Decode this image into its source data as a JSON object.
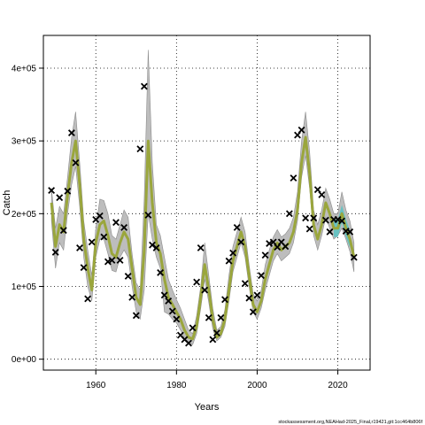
{
  "chart_data": {
    "type": "line",
    "xlabel": "Years",
    "ylabel": "Catch",
    "xlim": [
      1947,
      2028
    ],
    "ylim": [
      -15000,
      445000
    ],
    "x_ticks": [
      1960,
      1980,
      2000,
      2020
    ],
    "y_ticks": [
      0,
      100000,
      200000,
      300000,
      400000
    ],
    "y_tick_labels": [
      "0e+00",
      "1e+05",
      "2e+05",
      "3e+05",
      "4e+05"
    ],
    "grid": true,
    "colors": {
      "band": "#bdbdbd",
      "band_edge": "#8c8c8c",
      "fit_line": "#9aa63c",
      "recent_band": "#59c3c3",
      "recent_line": "#2e7fb5",
      "observed_marker": "#000000"
    },
    "series": [
      {
        "name": "",
        "kind": "fit",
        "x": [
          1949,
          1950,
          1951,
          1952,
          1953,
          1954,
          1955,
          1956,
          1957,
          1958,
          1959,
          1960,
          1961,
          1962,
          1963,
          1964,
          1965,
          1966,
          1967,
          1968,
          1969,
          1970,
          1971,
          1972,
          1973,
          1974,
          1975,
          1976,
          1977,
          1978,
          1979,
          1980,
          1981,
          1982,
          1983,
          1984,
          1985,
          1986,
          1987,
          1988,
          1989,
          1990,
          1991,
          1992,
          1993,
          1994,
          1995,
          1996,
          1997,
          1998,
          1999,
          2000,
          2001,
          2002,
          2003,
          2004,
          2005,
          2006,
          2007,
          2008,
          2009,
          2010,
          2011,
          2012,
          2013,
          2014,
          2015,
          2016,
          2017,
          2018,
          2019,
          2020,
          2021,
          2022,
          2023,
          2024
        ],
        "y": [
          215000,
          155000,
          185000,
          175000,
          225000,
          270000,
          300000,
          240000,
          165000,
          125000,
          95000,
          160000,
          185000,
          190000,
          170000,
          145000,
          140000,
          160000,
          175000,
          165000,
          125000,
          85000,
          75000,
          150000,
          300000,
          215000,
          160000,
          145000,
          110000,
          85000,
          75000,
          65000,
          55000,
          40000,
          30000,
          28000,
          45000,
          85000,
          130000,
          95000,
          55000,
          30000,
          35000,
          55000,
          95000,
          135000,
          155000,
          175000,
          155000,
          115000,
          75000,
          65000,
          80000,
          110000,
          130000,
          150000,
          160000,
          150000,
          155000,
          160000,
          175000,
          205000,
          270000,
          305000,
          255000,
          185000,
          165000,
          185000,
          215000,
          200000,
          180000,
          180000,
          200000,
          180000,
          165000,
          140000
        ],
        "lower": [
          190000,
          125000,
          160000,
          150000,
          200000,
          240000,
          265000,
          210000,
          140000,
          100000,
          80000,
          140000,
          165000,
          165000,
          145000,
          122000,
          120000,
          140000,
          150000,
          140000,
          100000,
          65000,
          55000,
          95000,
          200000,
          165000,
          140000,
          125000,
          65000,
          62000,
          55000,
          50000,
          40000,
          28000,
          22000,
          20000,
          35000,
          70000,
          110000,
          78000,
          42000,
          25000,
          30000,
          45000,
          80000,
          120000,
          140000,
          160000,
          140000,
          100000,
          65000,
          55000,
          70000,
          95000,
          115000,
          135000,
          145000,
          135000,
          140000,
          145000,
          160000,
          190000,
          250000,
          280000,
          235000,
          170000,
          150000,
          170000,
          195000,
          180000,
          165000,
          170000,
          180000,
          165000,
          148000,
          120000
        ],
        "upper": [
          235000,
          180000,
          210000,
          200000,
          250000,
          305000,
          340000,
          270000,
          190000,
          150000,
          115000,
          180000,
          220000,
          218000,
          200000,
          170000,
          165000,
          185000,
          205000,
          195000,
          145000,
          105000,
          95000,
          220000,
          425000,
          270000,
          185000,
          170000,
          140000,
          110000,
          95000,
          82000,
          70000,
          55000,
          40000,
          35000,
          60000,
          100000,
          160000,
          115000,
          70000,
          40000,
          45000,
          68000,
          115000,
          155000,
          175000,
          195000,
          175000,
          130000,
          90000,
          80000,
          95000,
          130000,
          150000,
          168000,
          178000,
          168000,
          172000,
          180000,
          195000,
          230000,
          300000,
          340000,
          285000,
          205000,
          185000,
          205000,
          235000,
          220000,
          200000,
          200000,
          230000,
          205000,
          190000,
          160000
        ]
      },
      {
        "name": "",
        "kind": "observed",
        "x": [
          1949,
          1950,
          1951,
          1952,
          1953,
          1954,
          1955,
          1956,
          1957,
          1958,
          1959,
          1960,
          1961,
          1962,
          1963,
          1964,
          1965,
          1966,
          1967,
          1968,
          1969,
          1970,
          1971,
          1972,
          1973,
          1974,
          1975,
          1976,
          1977,
          1978,
          1979,
          1980,
          1981,
          1982,
          1983,
          1984,
          1985,
          1986,
          1987,
          1988,
          1989,
          1990,
          1991,
          1992,
          1993,
          1994,
          1995,
          1996,
          1997,
          1998,
          1999,
          2000,
          2001,
          2002,
          2003,
          2004,
          2005,
          2006,
          2007,
          2008,
          2009,
          2010,
          2011,
          2012,
          2013,
          2014,
          2015,
          2016,
          2017,
          2018,
          2019,
          2020,
          2021,
          2022,
          2023,
          2024
        ],
        "y": [
          232000,
          147000,
          222000,
          177000,
          231000,
          311000,
          270000,
          153000,
          126000,
          83000,
          161000,
          192000,
          197000,
          168000,
          134000,
          136000,
          188000,
          136000,
          181000,
          114000,
          85000,
          60000,
          289000,
          375000,
          198000,
          157000,
          153000,
          119000,
          88000,
          80000,
          66000,
          55000,
          33000,
          27000,
          22000,
          43000,
          106000,
          153000,
          95000,
          57000,
          27000,
          36000,
          57000,
          82000,
          135000,
          146000,
          181000,
          161000,
          104000,
          84000,
          65000,
          88000,
          115000,
          143000,
          159000,
          161000,
          154000,
          161000,
          155000,
          200000,
          249000,
          308000,
          315000,
          194000,
          179000,
          194000,
          233000,
          226000,
          191000,
          175000,
          192000,
          192000,
          190000,
          176000,
          175000,
          140000
        ]
      }
    ],
    "footer": "stockassessment.org,NEAHad-2025_Final,r19421,git:1cc464b806f"
  }
}
